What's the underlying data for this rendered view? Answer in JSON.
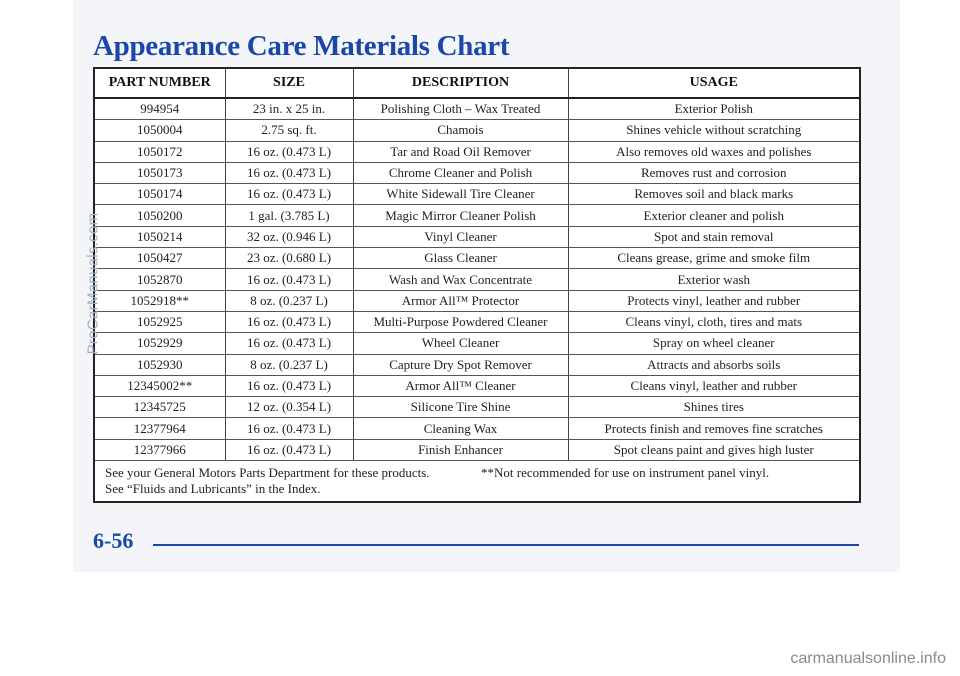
{
  "title": "Appearance Care Materials Chart",
  "columns": [
    "PART NUMBER",
    "SIZE",
    "DESCRIPTION",
    "USAGE"
  ],
  "rows": [
    [
      "994954",
      "23 in. x 25 in.",
      "Polishing Cloth – Wax Treated",
      "Exterior Polish"
    ],
    [
      "1050004",
      "2.75 sq. ft.",
      "Chamois",
      "Shines vehicle without scratching"
    ],
    [
      "1050172",
      "16 oz. (0.473 L)",
      "Tar and Road Oil Remover",
      "Also removes old waxes and polishes"
    ],
    [
      "1050173",
      "16 oz. (0.473 L)",
      "Chrome Cleaner and Polish",
      "Removes rust and corrosion"
    ],
    [
      "1050174",
      "16 oz. (0.473 L)",
      "White Sidewall Tire Cleaner",
      "Removes soil and black marks"
    ],
    [
      "1050200",
      "1 gal. (3.785 L)",
      "Magic Mirror Cleaner Polish",
      "Exterior cleaner and polish"
    ],
    [
      "1050214",
      "32 oz. (0.946 L)",
      "Vinyl Cleaner",
      "Spot and stain removal"
    ],
    [
      "1050427",
      "23 oz. (0.680 L)",
      "Glass Cleaner",
      "Cleans grease, grime and smoke film"
    ],
    [
      "1052870",
      "16 oz. (0.473 L)",
      "Wash and Wax Concentrate",
      "Exterior wash"
    ],
    [
      "1052918**",
      "8 oz. (0.237 L)",
      "Armor All™ Protector",
      "Protects vinyl, leather and rubber"
    ],
    [
      "1052925",
      "16 oz. (0.473 L)",
      "Multi-Purpose Powdered Cleaner",
      "Cleans vinyl, cloth, tires and mats"
    ],
    [
      "1052929",
      "16 oz. (0.473 L)",
      "Wheel Cleaner",
      "Spray on wheel cleaner"
    ],
    [
      "1052930",
      "8 oz. (0.237 L)",
      "Capture Dry Spot Remover",
      "Attracts and absorbs soils"
    ],
    [
      "12345002**",
      "16 oz. (0.473 L)",
      "Armor All™ Cleaner",
      "Cleans vinyl, leather and rubber"
    ],
    [
      "12345725",
      "12 oz. (0.354 L)",
      "Silicone Tire Shine",
      "Shines tires"
    ],
    [
      "12377964",
      "16 oz. (0.473 L)",
      "Cleaning Wax",
      "Protects finish and removes fine scratches"
    ],
    [
      "12377966",
      "16 oz. (0.473 L)",
      "Finish Enhancer",
      "Spot cleans paint and gives high luster"
    ]
  ],
  "footnote": {
    "line1_left": "See your General Motors Parts Department for these products.",
    "line1_right": "**Not recommended for use on instrument panel vinyl.",
    "line2": "See “Fluids and Lubricants” in the Index."
  },
  "page_number": "6-56",
  "watermarks": {
    "side": "ProCarManuals.com",
    "bottom": "carmanualsonline.info"
  },
  "colors": {
    "accent": "#1b47a8",
    "page_background": "#f3f5f9"
  }
}
